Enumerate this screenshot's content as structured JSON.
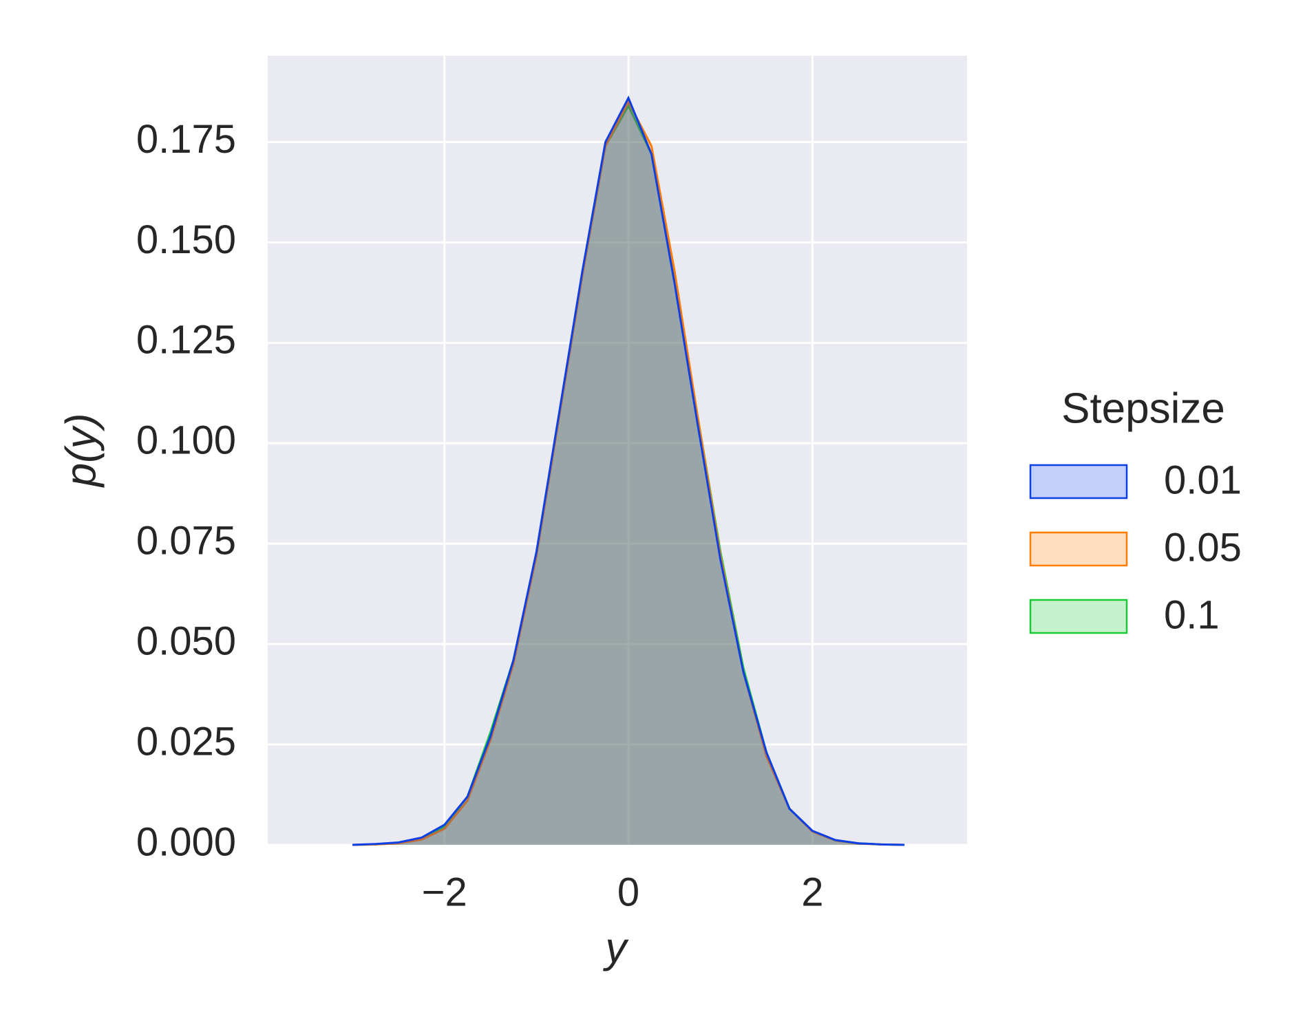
{
  "chart_data": {
    "type": "kde",
    "xlabel": "y",
    "ylabel": "p(y)",
    "x": [
      -3,
      -2.75,
      -2.5,
      -2.25,
      -2,
      -1.75,
      -1.5,
      -1.25,
      -1,
      -0.75,
      -0.5,
      -0.25,
      0,
      0.25,
      0.5,
      0.75,
      1,
      1.25,
      1.5,
      1.75,
      2,
      2.25,
      2.5,
      2.75,
      3
    ],
    "series": [
      {
        "name": "0.01",
        "color": "#0d3fe6",
        "values": [
          0,
          0.0002,
          0.0006,
          0.0018,
          0.005,
          0.012,
          0.027,
          0.046,
          0.073,
          0.108,
          0.143,
          0.175,
          0.186,
          0.172,
          0.14,
          0.105,
          0.071,
          0.043,
          0.023,
          0.009,
          0.0035,
          0.0012,
          0.0004,
          0.0001,
          0
        ]
      },
      {
        "name": "0.05",
        "color": "#ff7c00",
        "values": [
          0,
          0.0001,
          0.0004,
          0.0013,
          0.004,
          0.011,
          0.026,
          0.045,
          0.072,
          0.107,
          0.142,
          0.174,
          0.185,
          0.174,
          0.143,
          0.107,
          0.072,
          0.043,
          0.022,
          0.009,
          0.0033,
          0.0011,
          0.0003,
          0.0001,
          0
        ]
      },
      {
        "name": "0.1",
        "color": "#1ac938",
        "values": [
          0,
          0.0001,
          0.0005,
          0.0015,
          0.0045,
          0.012,
          0.028,
          0.046,
          0.072,
          0.107,
          0.142,
          0.174,
          0.184,
          0.172,
          0.142,
          0.107,
          0.073,
          0.044,
          0.023,
          0.009,
          0.0034,
          0.0011,
          0.0004,
          0.0001,
          0
        ]
      }
    ],
    "xlim": [
      -3.92,
      3.68
    ],
    "xticks": [
      {
        "value": -2,
        "label": "−2"
      },
      0,
      2
    ],
    "ylim": [
      0,
      0.1965
    ],
    "yticks": [
      {
        "value": 0,
        "label": "0.000"
      },
      0.025,
      {
        "value": 0.05,
        "label": "0.050"
      },
      0.075,
      {
        "value": 0.1,
        "label": "0.100"
      },
      0.125,
      {
        "value": 0.15,
        "label": "0.150"
      },
      0.175
    ],
    "grid": true,
    "legend": {
      "title": "Stepsize",
      "position": "right"
    }
  }
}
